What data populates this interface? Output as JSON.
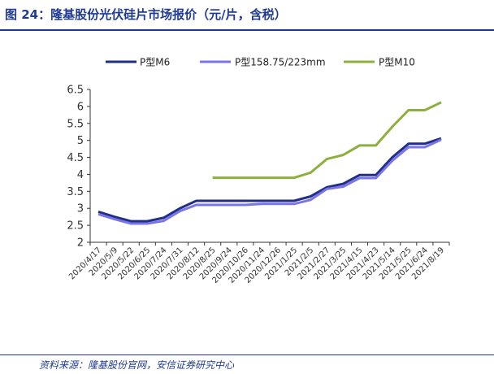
{
  "page": {
    "title": "图 24：隆基股份光伏硅片市场报价（元/片，含税）",
    "source": "资料来源：隆基股份官网，安信证券研究中心"
  },
  "colors": {
    "accent": "#1f3a93",
    "axis": "#333333"
  },
  "chart_data": {
    "type": "line",
    "title": "",
    "xlabel": "",
    "ylabel": "",
    "ylim": [
      2,
      6.5
    ],
    "yticks": [
      "2",
      "2.5",
      "3",
      "3.5",
      "4",
      "4.5",
      "5",
      "5.5",
      "6",
      "6.5"
    ],
    "categories": [
      "2020/4/17",
      "2020/5/9",
      "2020/5/22",
      "2020/6/25",
      "2020/7/24",
      "2020/7/31",
      "2020/8/12",
      "2020/8/25",
      "2020/9/24",
      "2020/10/26",
      "2020/11/24",
      "2020/12/26",
      "2021/1/25",
      "2021/2/5",
      "2021/2/27",
      "2021/3/25",
      "2021/4/15",
      "2021/4/23",
      "2021/5/14",
      "2021/5/25",
      "2021/6/24",
      "2021/8/19"
    ],
    "legend_position": "top",
    "series": [
      {
        "name": "P型M6",
        "color": "#1f2f86",
        "values": [
          2.9,
          2.75,
          2.62,
          2.62,
          2.72,
          3.0,
          3.22,
          3.22,
          3.22,
          3.22,
          3.22,
          3.22,
          3.22,
          3.35,
          3.62,
          3.72,
          3.98,
          3.98,
          4.5,
          4.9,
          4.9,
          5.06
        ]
      },
      {
        "name": "P型158.75/223mm",
        "color": "#7b74e8",
        "values": [
          2.83,
          2.68,
          2.55,
          2.55,
          2.63,
          2.92,
          3.1,
          3.1,
          3.1,
          3.1,
          3.13,
          3.13,
          3.13,
          3.25,
          3.57,
          3.64,
          3.89,
          3.89,
          4.4,
          4.8,
          4.8,
          5.02
        ]
      },
      {
        "name": "P型M10",
        "color": "#8db03c",
        "values": [
          null,
          null,
          null,
          null,
          null,
          null,
          null,
          3.9,
          3.9,
          3.9,
          3.9,
          3.9,
          3.9,
          4.05,
          4.45,
          4.57,
          4.85,
          4.85,
          5.4,
          5.89,
          5.89,
          6.12
        ]
      }
    ]
  }
}
